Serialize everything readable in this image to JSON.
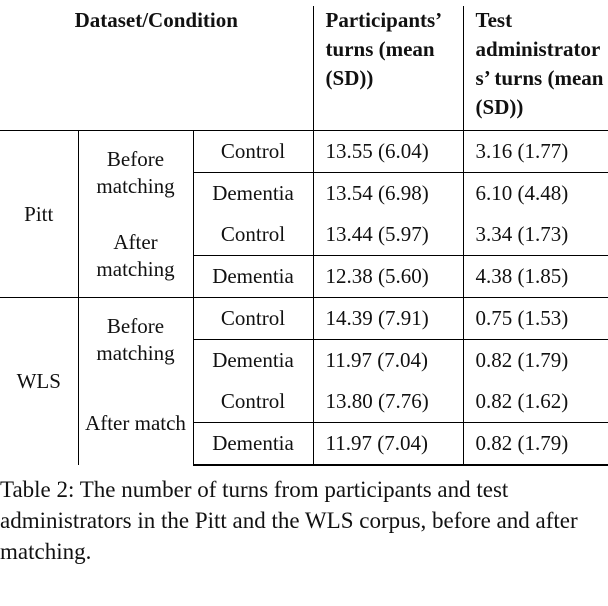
{
  "table": {
    "header": [
      "Dataset/Condition",
      "Participants’ turns (mean (SD))",
      "Test administrators’ turns (mean (SD))"
    ],
    "groups": [
      {
        "name": "Pitt",
        "subgroups": [
          {
            "name": "Before matching",
            "rows": [
              [
                "Control",
                "13.55 (6.04)",
                "3.16 (1.77)"
              ],
              [
                "Dementia",
                "13.54 (6.98)",
                "6.10 (4.48)"
              ]
            ]
          },
          {
            "name": "After matching",
            "rows": [
              [
                "Control",
                "13.44 (5.97)",
                "3.34 (1.73)"
              ],
              [
                "Dementia",
                "12.38 (5.60)",
                "4.38 (1.85)"
              ]
            ]
          }
        ]
      },
      {
        "name": "WLS",
        "subgroups": [
          {
            "name": "Before matching",
            "rows": [
              [
                "Control",
                "14.39 (7.91)",
                "0.75 (1.53)"
              ],
              [
                "Dementia",
                "11.97 (7.04)",
                "0.82 (1.79)"
              ]
            ]
          },
          {
            "name": "After match",
            "rows": [
              [
                "Control",
                "13.80 (7.76)",
                "0.82 (1.62)"
              ],
              [
                "Dementia",
                "11.97 (7.04)",
                "0.82 (1.79)"
              ]
            ]
          }
        ]
      }
    ]
  },
  "caption": "Table 2: The number of turns from participants and test administrators in the Pitt and the WLS corpus, before and after matching."
}
